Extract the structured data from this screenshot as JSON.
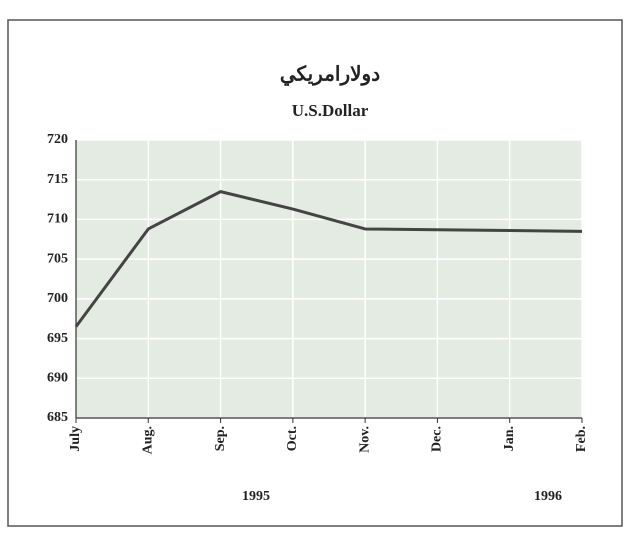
{
  "chart_data": {
    "type": "line",
    "title": "دولارامريكي",
    "subtitle": "U.S.Dollar",
    "categories": [
      "July",
      "Aug.",
      "Sep.",
      "Oct.",
      "Nov.",
      "Dec.",
      "Jan.",
      "Feb."
    ],
    "values": [
      696.5,
      708.8,
      713.5,
      711.3,
      708.8,
      708.7,
      708.6,
      708.5
    ],
    "color": "#444444",
    "ylim": [
      685,
      720
    ],
    "yticks": [
      685,
      690,
      695,
      700,
      705,
      710,
      715,
      720
    ],
    "grid": true,
    "annotations": [
      "1995",
      "1996"
    ]
  }
}
